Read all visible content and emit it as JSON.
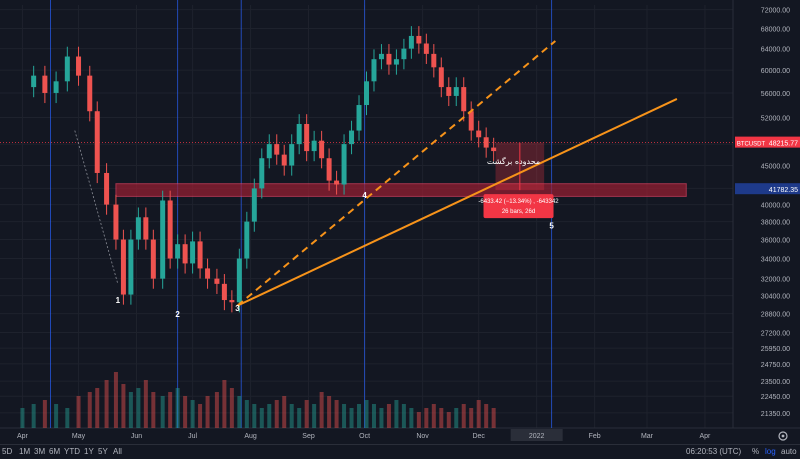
{
  "chart_data": {
    "type": "candlestick",
    "symbol": "BTCUSDT",
    "ylim": [
      20400,
      73000
    ],
    "y_scale": "log",
    "y_ticks": [
      "72000.00",
      "68000.00",
      "64000.00",
      "60000.00",
      "56000.00",
      "52000.00",
      "48000.00",
      "45000.00",
      "42000.00",
      "40000.00",
      "38000.00",
      "36000.00",
      "34000.00",
      "32000.00",
      "30400.00",
      "28800.00",
      "27200.00",
      "25950.00",
      "24750.00",
      "23500.00",
      "22450.00",
      "21350.00"
    ],
    "x_ticks": [
      "Apr",
      "May",
      "Jun",
      "Jul",
      "Aug",
      "Sep",
      "Oct",
      "Nov",
      "Dec",
      "2022",
      "Feb",
      "Mar",
      "Apr"
    ],
    "x_tick_days": [
      0,
      30,
      61,
      91,
      122,
      153,
      183,
      214,
      244,
      275,
      306,
      334,
      365
    ],
    "x_highlight": "2022",
    "last_price": 48215.77,
    "last_price_label": "48215.77",
    "zone_price_label": "41782.35",
    "zone": {
      "from_day": 50,
      "to_day": 355,
      "low": 41000,
      "high": 42600
    },
    "path_days": [
      0,
      6,
      12,
      18,
      24,
      30,
      36,
      40,
      45,
      50,
      54,
      58,
      62,
      66,
      70,
      75,
      79,
      83,
      87,
      91,
      95,
      99,
      104,
      108,
      112,
      116,
      120,
      124,
      128,
      132,
      136,
      140,
      144,
      148,
      152,
      156,
      160,
      164,
      168,
      172,
      176,
      180,
      184,
      188,
      192,
      196,
      200,
      204,
      208,
      212,
      216,
      220,
      224,
      228,
      232,
      236,
      240,
      244,
      248,
      252
    ],
    "path_values": [
      57000,
      59000,
      56000,
      58000,
      62500,
      59000,
      53000,
      44000,
      40000,
      36000,
      30500,
      36000,
      38500,
      36000,
      32000,
      40500,
      34000,
      35500,
      33500,
      35800,
      33000,
      32000,
      31500,
      30000,
      29800,
      34000,
      38000,
      42000,
      46000,
      48000,
      46500,
      45000,
      48000,
      51000,
      47000,
      48500,
      46000,
      43000,
      42500,
      48000,
      50000,
      54000,
      58000,
      62000,
      63000,
      61000,
      62000,
      64000,
      66500,
      65000,
      63000,
      60500,
      57000,
      55500,
      57000,
      53000,
      50000,
      49000,
      47500,
      47000
    ],
    "volumes": [
      5,
      6,
      7,
      6,
      5,
      8,
      9,
      10,
      12,
      14,
      11,
      9,
      10,
      12,
      9,
      8,
      9,
      10,
      8,
      7,
      6,
      8,
      9,
      12,
      10,
      8,
      7,
      6,
      5,
      6,
      7,
      8,
      6,
      5,
      7,
      6,
      9,
      8,
      7,
      6,
      5,
      6,
      7,
      6,
      5,
      6,
      7,
      6,
      5,
      4,
      5,
      6,
      5,
      4,
      5,
      6,
      5,
      7,
      6,
      5
    ],
    "markers": [
      {
        "label": "1",
        "day": 51
      },
      {
        "label": "2",
        "day": 83
      },
      {
        "label": "3",
        "day": 115
      },
      {
        "label": "4",
        "day": 183
      },
      {
        "label": "5",
        "day": 283
      }
    ],
    "vlines_days": [
      15,
      83,
      117,
      183,
      283
    ],
    "trendlines": [
      {
        "style": "solid",
        "from": {
          "day": 115,
          "value": 29500
        },
        "to": {
          "day": 350,
          "value": 55000
        }
      },
      {
        "style": "dashed",
        "from": {
          "day": 115,
          "value": 29500
        },
        "to": {
          "day": 285,
          "value": 65500
        }
      },
      {
        "style": "dotted",
        "from": {
          "day": 28,
          "value": 50000
        },
        "to": {
          "day": 51,
          "value": 31500
        }
      }
    ],
    "measure_box": {
      "from_day": 253,
      "to_day": 279,
      "high": 48215.77,
      "low": 41782.35
    },
    "annotations": {
      "zone_text": "محدوده برگشت",
      "measure_line1": "-6433.42 (−13.34%) , -643342",
      "measure_line2": "26 bars, 26d"
    }
  },
  "toolbar": {
    "timeframes": [
      "5D",
      "1M",
      "3M",
      "6M",
      "YTD",
      "1Y",
      "5Y",
      "All"
    ],
    "clock": "06:20:53 (UTC)",
    "options": [
      "%",
      "log",
      "auto"
    ],
    "active_option": "log"
  }
}
